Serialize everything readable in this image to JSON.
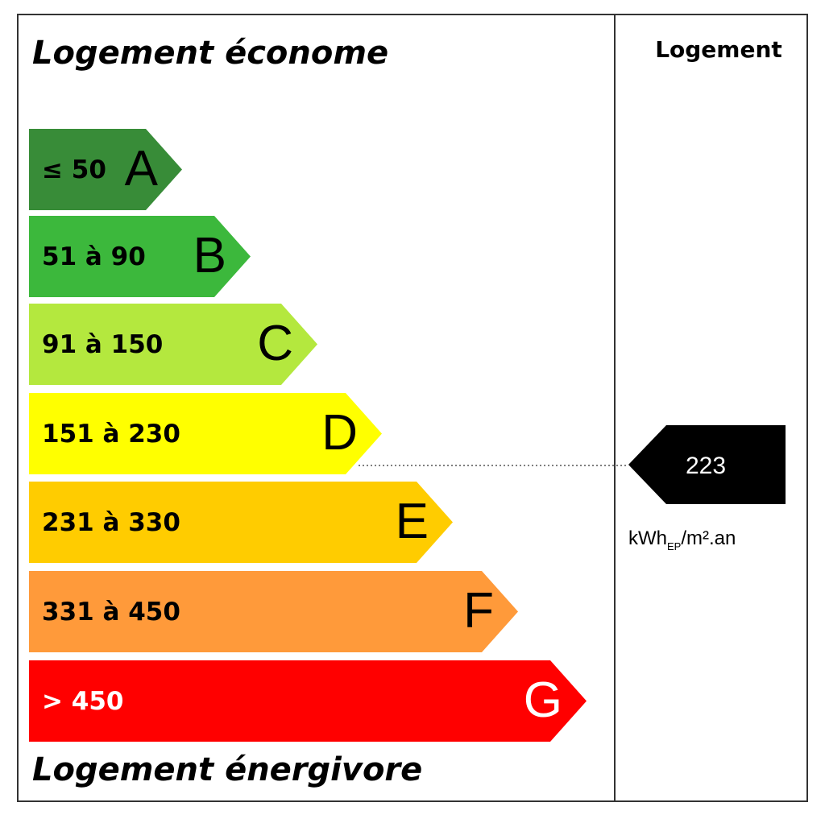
{
  "header": {
    "top_label": "Logement économe",
    "bottom_label": "Logement énergivore",
    "column_title": "Logement"
  },
  "classes": [
    {
      "range": "≤ 50",
      "letter": "A",
      "color": "#388c38",
      "text_color": "#000000"
    },
    {
      "range": "51 à 90",
      "letter": "B",
      "color": "#3cb83c",
      "text_color": "#000000"
    },
    {
      "range": "91 à 150",
      "letter": "C",
      "color": "#b4e83e",
      "text_color": "#000000"
    },
    {
      "range": "151 à 230",
      "letter": "D",
      "color": "#ffff00",
      "text_color": "#000000"
    },
    {
      "range": "231 à 330",
      "letter": "E",
      "color": "#ffcc00",
      "text_color": "#000000"
    },
    {
      "range": "331 à 450",
      "letter": "F",
      "color": "#ff9a3a",
      "text_color": "#000000"
    },
    {
      "range": "> 450",
      "letter": "G",
      "color": "#ff0000",
      "text_color": "#ffffff"
    }
  ],
  "indicator": {
    "value": 223,
    "unit": "kWh",
    "unit_sub": "EP",
    "unit_rest": "/m².an"
  }
}
